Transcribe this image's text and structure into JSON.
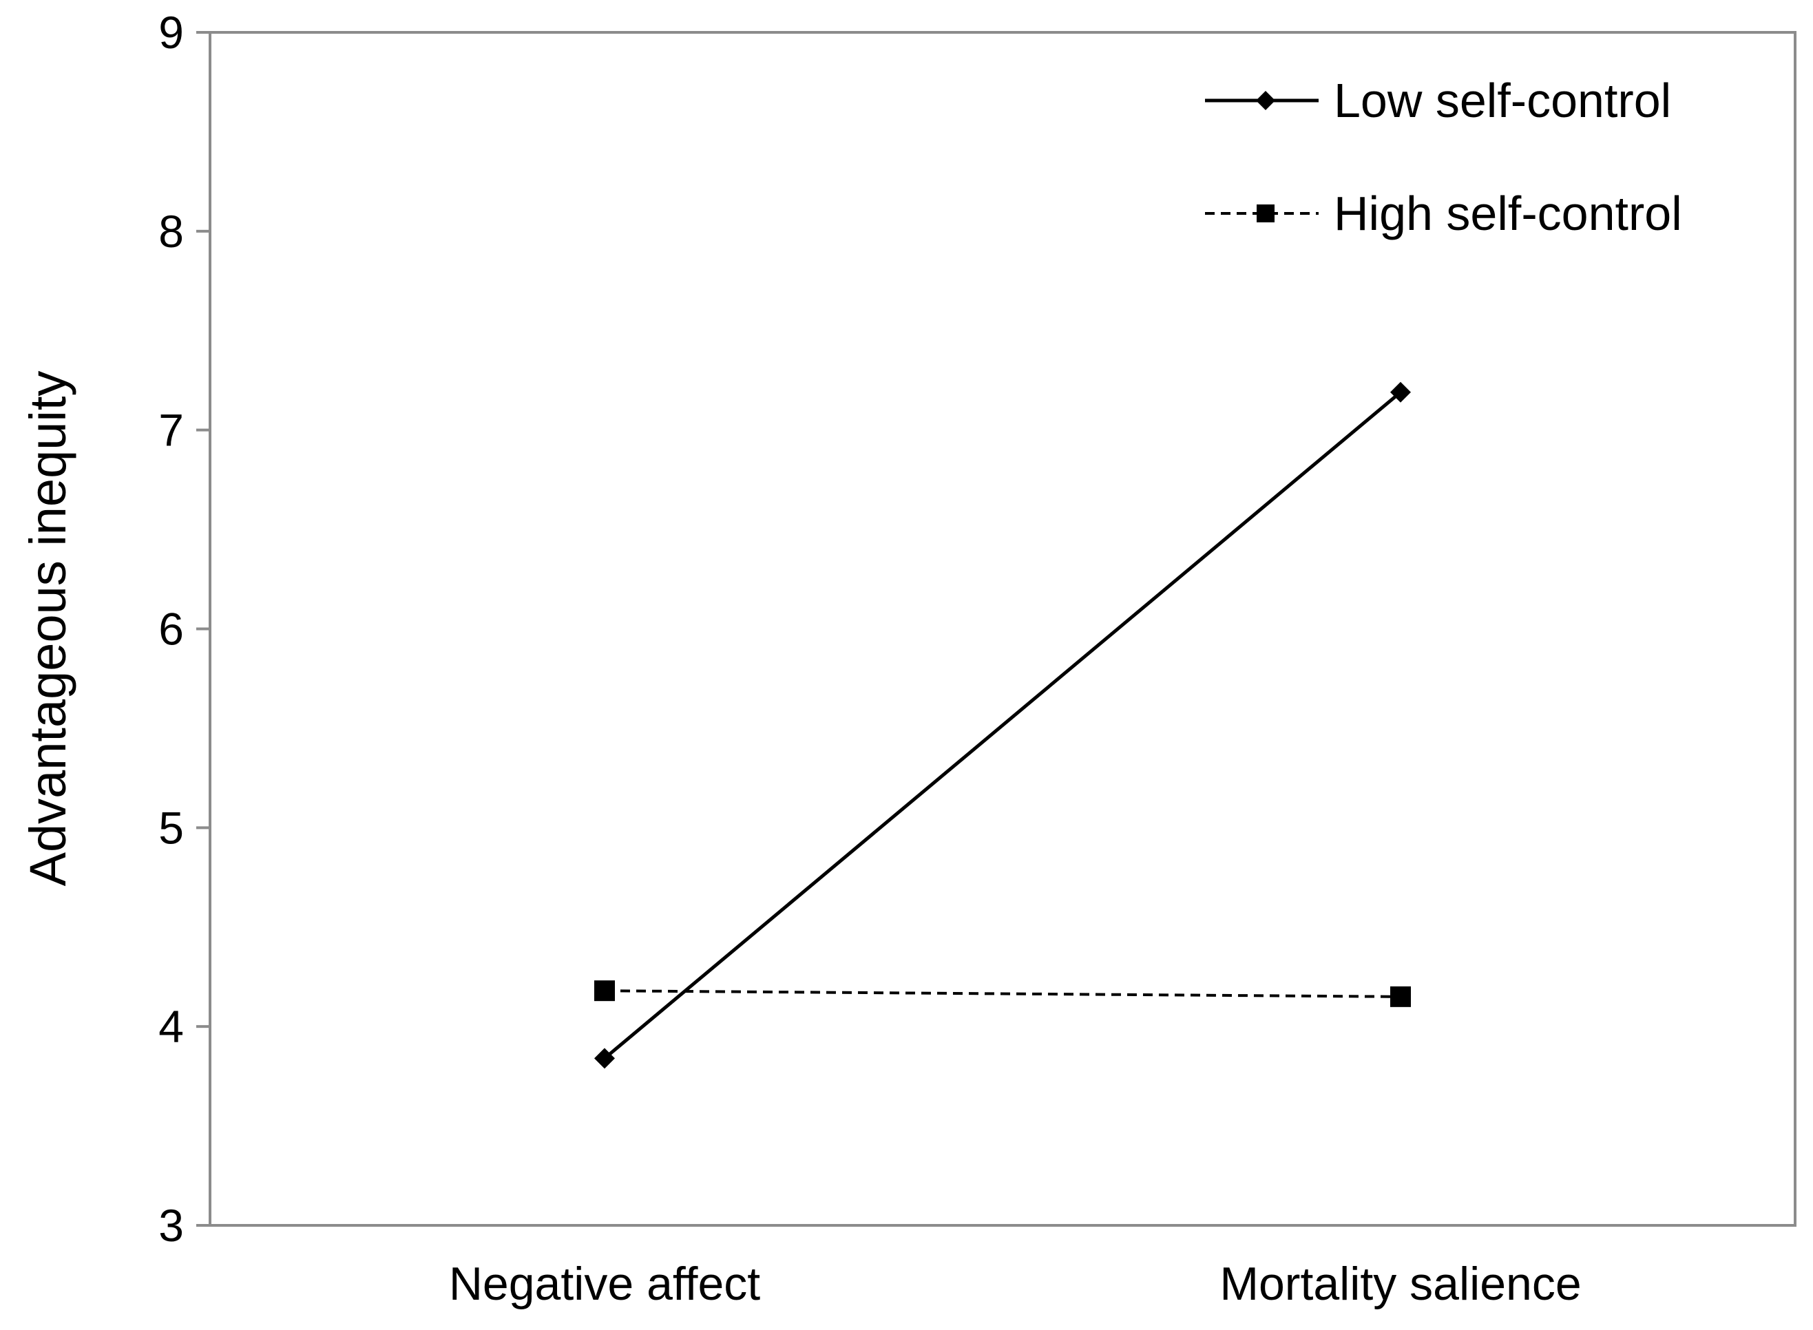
{
  "chart_data": {
    "type": "line",
    "title": "",
    "xlabel": "",
    "ylabel": "Advantageous inequity",
    "categories": [
      "Negative affect",
      "Mortality salience"
    ],
    "ylim": [
      3,
      9
    ],
    "yticks": [
      "3",
      "4",
      "5",
      "6",
      "7",
      "8",
      "9"
    ],
    "grid": false,
    "legend_position": "top-right",
    "series": [
      {
        "name": "Low self-control",
        "values": [
          3.84,
          7.19
        ],
        "line_style": "solid",
        "marker": "diamond",
        "color": "#000000"
      },
      {
        "name": "High self-control",
        "values": [
          4.18,
          4.15
        ],
        "line_style": "dashed",
        "marker": "square",
        "color": "#000000"
      }
    ]
  }
}
